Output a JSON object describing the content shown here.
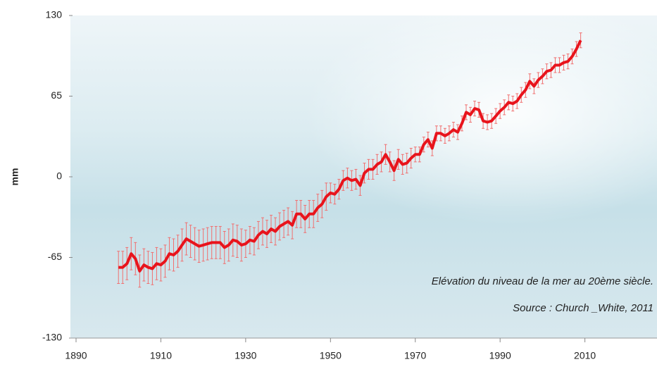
{
  "chart_data": {
    "type": "line",
    "y_label": "mm",
    "annotations": [
      "Elévation du niveau de la mer au 20ème siècle.",
      "Source : Church _White, 2011"
    ],
    "x": [
      1900,
      1901,
      1902,
      1903,
      1904,
      1905,
      1906,
      1907,
      1908,
      1909,
      1910,
      1911,
      1912,
      1913,
      1914,
      1915,
      1916,
      1917,
      1918,
      1919,
      1920,
      1921,
      1922,
      1923,
      1924,
      1925,
      1926,
      1927,
      1928,
      1929,
      1930,
      1931,
      1932,
      1933,
      1934,
      1935,
      1936,
      1937,
      1938,
      1939,
      1940,
      1941,
      1942,
      1943,
      1944,
      1945,
      1946,
      1947,
      1948,
      1949,
      1950,
      1951,
      1952,
      1953,
      1954,
      1955,
      1956,
      1957,
      1958,
      1959,
      1960,
      1961,
      1962,
      1963,
      1964,
      1965,
      1966,
      1967,
      1968,
      1969,
      1970,
      1971,
      1972,
      1973,
      1974,
      1975,
      1976,
      1977,
      1978,
      1979,
      1980,
      1981,
      1982,
      1983,
      1984,
      1985,
      1986,
      1987,
      1988,
      1989,
      1990,
      1991,
      1992,
      1993,
      1994,
      1995,
      1996,
      1997,
      1998,
      1999,
      2000,
      2001,
      2002,
      2003,
      2004,
      2005,
      2006,
      2007,
      2008,
      2009
    ],
    "values": [
      -73,
      -73,
      -70,
      -62,
      -66,
      -76,
      -71,
      -73,
      -74,
      -70,
      -71,
      -68,
      -62,
      -63,
      -60,
      -55,
      -50,
      -52,
      -54,
      -56,
      -55,
      -54,
      -53,
      -53,
      -53,
      -57,
      -55,
      -51,
      -52,
      -55,
      -54,
      -51,
      -52,
      -47,
      -44,
      -46,
      -42,
      -44,
      -40,
      -38,
      -36,
      -39,
      -30,
      -30,
      -34,
      -30,
      -30,
      -25,
      -22,
      -16,
      -13,
      -14,
      -10,
      -3,
      -1,
      -3,
      -2,
      -7,
      3,
      6,
      6,
      10,
      12,
      18,
      12,
      5,
      14,
      10,
      11,
      15,
      18,
      18,
      26,
      30,
      23,
      35,
      35,
      33,
      35,
      38,
      36,
      43,
      52,
      50,
      55,
      54,
      45,
      44,
      45,
      49,
      53,
      56,
      60,
      59,
      61,
      66,
      70,
      77,
      73,
      78,
      81,
      85,
      86,
      90,
      90,
      92,
      93,
      97,
      103,
      110
    ],
    "errors": [
      13,
      13,
      13,
      13,
      13,
      13,
      13,
      13,
      13,
      13,
      13,
      13,
      13,
      13,
      13,
      13,
      13,
      13,
      13,
      13,
      13,
      13,
      13,
      13,
      13,
      13,
      13,
      13,
      13,
      13,
      11,
      11,
      11,
      11,
      11,
      11,
      11,
      11,
      11,
      11,
      11,
      11,
      11,
      11,
      11,
      11,
      11,
      11,
      11,
      11,
      8,
      8,
      8,
      8,
      8,
      8,
      8,
      8,
      8,
      8,
      8,
      8,
      8,
      8,
      8,
      8,
      8,
      8,
      8,
      8,
      6,
      6,
      6,
      6,
      6,
      6,
      6,
      6,
      6,
      6,
      6,
      6,
      6,
      6,
      6,
      6,
      6,
      6,
      6,
      6,
      6,
      6,
      6,
      6,
      6,
      6,
      6,
      6,
      6,
      6,
      6,
      6,
      6,
      6,
      6,
      6,
      6,
      6,
      6,
      6
    ],
    "color": "#e8141c",
    "error_color": "#f07070",
    "xlim": [
      1890,
      2027
    ],
    "xticks": [
      1890,
      1910,
      1930,
      1950,
      1970,
      1990,
      2010
    ],
    "ylim": [
      -130,
      130
    ],
    "yticks": [
      -130,
      -65,
      0,
      65,
      130
    ]
  }
}
